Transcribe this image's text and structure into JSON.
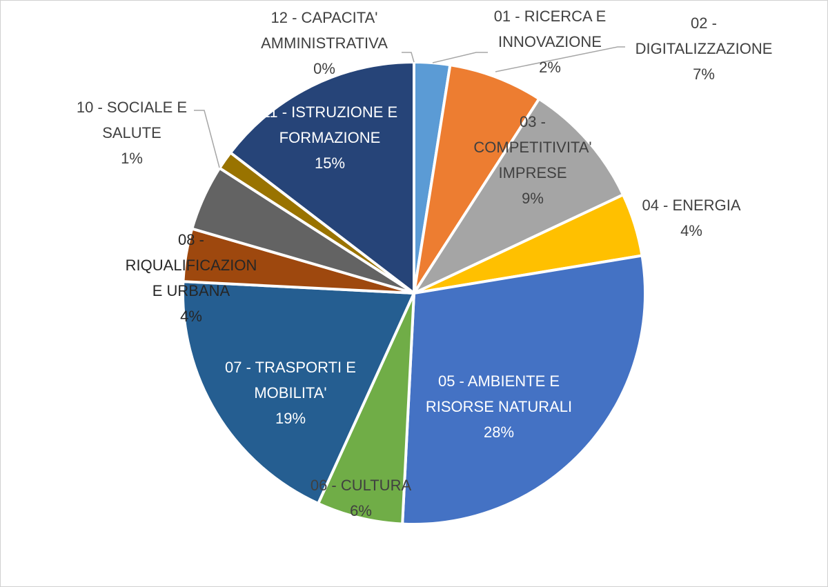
{
  "chart_data": {
    "type": "pie",
    "title": "",
    "slices": [
      {
        "label_lines": [
          "01 - RICERCA E",
          "INNOVAZIONE"
        ],
        "percent_label": "2%",
        "value": 2.5,
        "color": "#5B9BD5"
      },
      {
        "label_lines": [
          "02 -",
          "DIGITALIZZAZIONE"
        ],
        "percent_label": "7%",
        "value": 6.6,
        "color": "#ED7D31"
      },
      {
        "label_lines": [
          "03 -",
          "COMPETITIVITA'",
          "IMPRESE"
        ],
        "percent_label": "9%",
        "value": 8.9,
        "color": "#A5A5A5"
      },
      {
        "label_lines": [
          "04 - ENERGIA"
        ],
        "percent_label": "4%",
        "value": 4.4,
        "color": "#FFC000"
      },
      {
        "label_lines": [
          "05 - AMBIENTE E",
          "RISORSE NATURALI"
        ],
        "percent_label": "28%",
        "value": 28.4,
        "color": "#4472C4"
      },
      {
        "label_lines": [
          "06 - CULTURA"
        ],
        "percent_label": "6%",
        "value": 6.0,
        "color": "#70AD47"
      },
      {
        "label_lines": [
          "07 - TRASPORTI E",
          "MOBILITA'"
        ],
        "percent_label": "19%",
        "value": 19.0,
        "color": "#255E91"
      },
      {
        "label_lines": [
          "08 -",
          "RIQUALIFICAZION",
          "E URBANA"
        ],
        "percent_label": "4%",
        "value": 3.7,
        "color": "#9E480E"
      },
      {
        "label_lines": [],
        "percent_label": "",
        "value": 4.6,
        "color": "#636363"
      },
      {
        "label_lines": [
          "10 - SOCIALE E",
          "SALUTE"
        ],
        "percent_label": "1%",
        "value": 1.3,
        "color": "#997300"
      },
      {
        "label_lines": [
          "11 - ISTRUZIONE E",
          "FORMAZIONE"
        ],
        "percent_label": "15%",
        "value": 14.6,
        "color": "#264478"
      },
      {
        "label_lines": [
          "12 - CAPACITA'",
          "AMMINISTRATIVA"
        ],
        "percent_label": "0%",
        "value": 0.0,
        "color": "#43682B"
      }
    ]
  }
}
